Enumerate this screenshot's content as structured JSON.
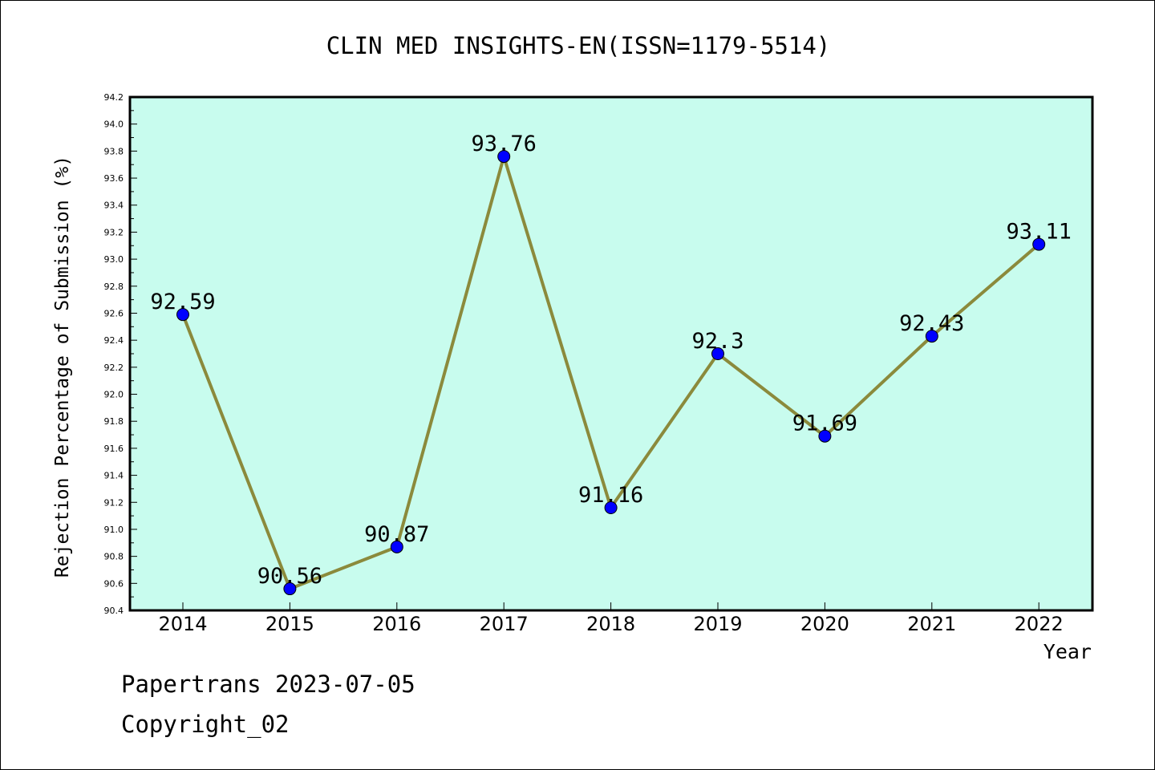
{
  "chart_data": {
    "type": "line",
    "title": "CLIN MED INSIGHTS-EN(ISSN=1179-5514)",
    "xlabel": "Year",
    "ylabel": "Rejection Percentage of Submission (%)",
    "categories": [
      "2014",
      "2015",
      "2016",
      "2017",
      "2018",
      "2019",
      "2020",
      "2021",
      "2022"
    ],
    "values": [
      92.59,
      90.56,
      90.87,
      93.76,
      91.16,
      92.3,
      91.69,
      92.43,
      93.11
    ],
    "data_labels": [
      "92.59",
      "90.56",
      "90.87",
      "93.76",
      "91.16",
      "92.3",
      "91.69",
      "92.43",
      "93.11"
    ],
    "ylim": [
      90.4,
      94.2
    ],
    "yticks": [
      "90.4",
      "90.6",
      "90.8",
      "91.0",
      "91.2",
      "91.4",
      "91.6",
      "91.8",
      "92.0",
      "92.2",
      "92.4",
      "92.6",
      "92.8",
      "93.0",
      "93.2",
      "93.4",
      "93.6",
      "93.8",
      "94.0",
      "94.2"
    ],
    "grid": false,
    "legend": "none",
    "colors": {
      "plot_background": "#c8fcee",
      "line": "#8b8a3c",
      "marker": "#0000ff",
      "axis": "#000000"
    }
  },
  "footer": {
    "line1": "Papertrans 2023-07-05",
    "line2": "Copyright_02"
  }
}
